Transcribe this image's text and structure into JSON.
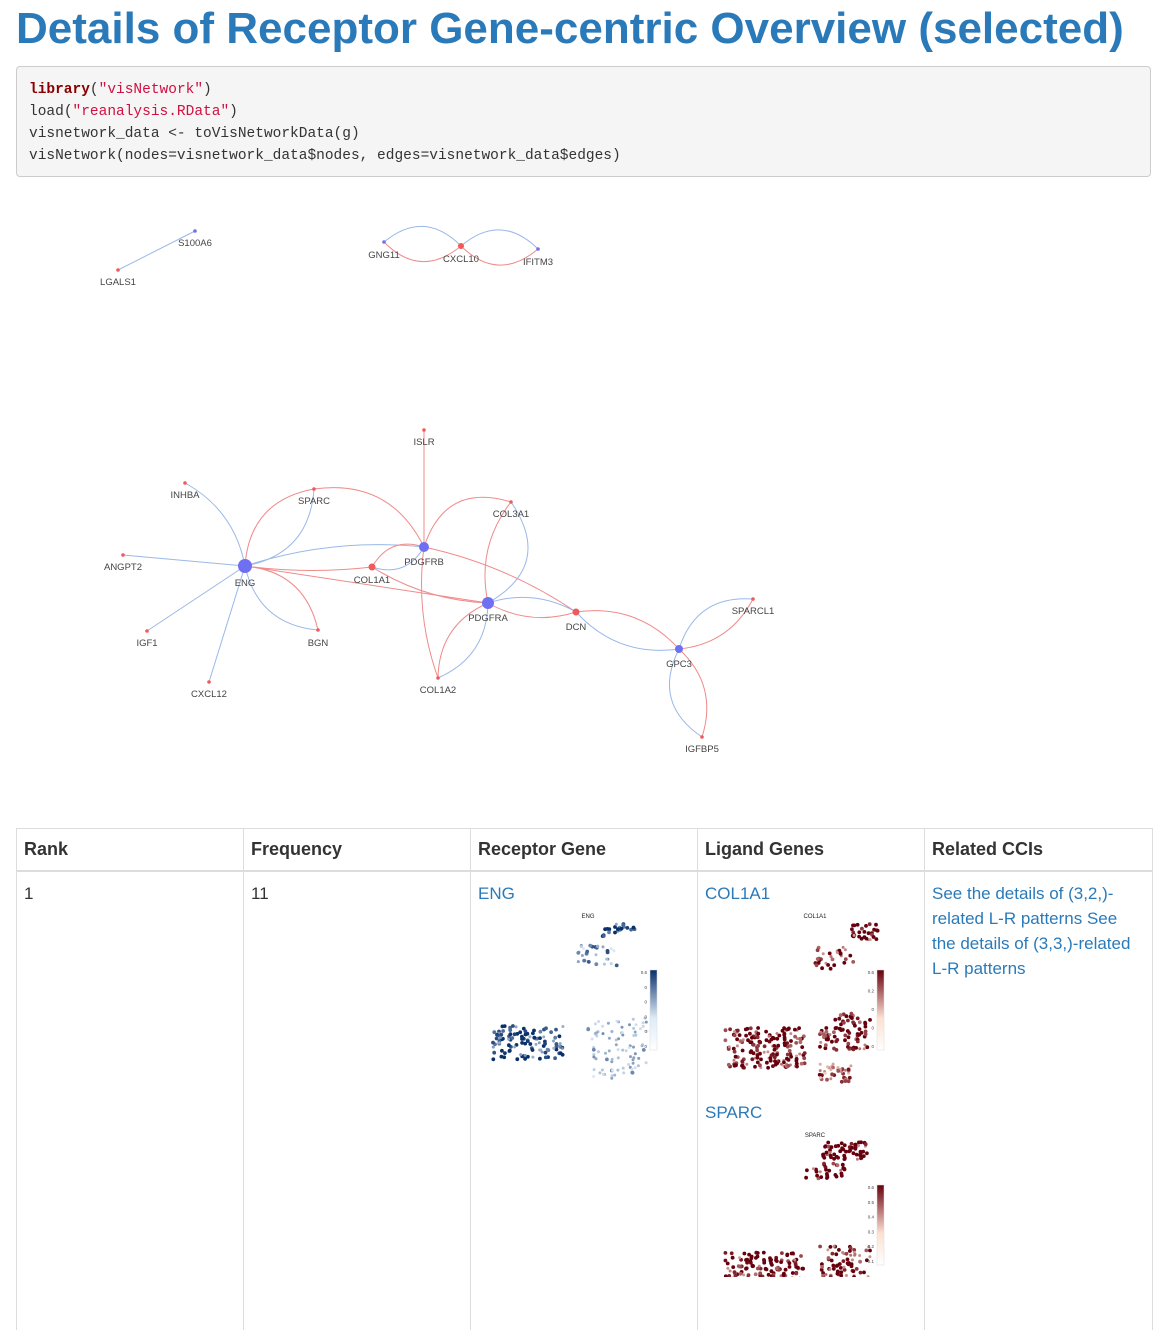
{
  "page_title": "Details of Receptor Gene-centric Overview (selected)",
  "code": {
    "line1_fn": "library",
    "line1_arg": "\"visNetwork\"",
    "line2_fn": "load",
    "line2_arg": "\"reanalysis.RData\"",
    "line3": "visnetwork_data <- toVisNetworkData(g)",
    "line4": "visNetwork(nodes=visnetwork_data$nodes, edges=visnetwork_data$edges)"
  },
  "network": {
    "colors": {
      "receptor_node": "#6f6ff2",
      "ligand_node": "#f05a5a",
      "ligand_edge": "#f08a8a",
      "receptor_edge": "#9ab8e8"
    },
    "nodes": [
      {
        "id": "S100A6",
        "label": "S100A6",
        "kind": "receptor"
      },
      {
        "id": "LGALS1",
        "label": "LGALS1",
        "kind": "ligand"
      },
      {
        "id": "GNG11",
        "label": "GNG11",
        "kind": "receptor"
      },
      {
        "id": "CXCL10",
        "label": "CXCL10",
        "kind": "ligand"
      },
      {
        "id": "IFITM3",
        "label": "IFITM3",
        "kind": "receptor"
      },
      {
        "id": "ISLR",
        "label": "ISLR",
        "kind": "ligand"
      },
      {
        "id": "INHBA",
        "label": "INHBA",
        "kind": "ligand"
      },
      {
        "id": "SPARC",
        "label": "SPARC",
        "kind": "ligand"
      },
      {
        "id": "COL3A1",
        "label": "COL3A1",
        "kind": "ligand"
      },
      {
        "id": "ANGPT2",
        "label": "ANGPT2",
        "kind": "ligand"
      },
      {
        "id": "ENG",
        "label": "ENG",
        "kind": "receptor"
      },
      {
        "id": "COL1A1",
        "label": "COL1A1",
        "kind": "ligand"
      },
      {
        "id": "PDGFRB",
        "label": "PDGFRB",
        "kind": "receptor"
      },
      {
        "id": "PDGFRA",
        "label": "PDGFRA",
        "kind": "receptor"
      },
      {
        "id": "DCN",
        "label": "DCN",
        "kind": "ligand"
      },
      {
        "id": "SPARCL1",
        "label": "SPARCL1",
        "kind": "ligand"
      },
      {
        "id": "IGF1",
        "label": "IGF1",
        "kind": "ligand"
      },
      {
        "id": "BGN",
        "label": "BGN",
        "kind": "ligand"
      },
      {
        "id": "GPC3",
        "label": "GPC3",
        "kind": "receptor"
      },
      {
        "id": "CXCL12",
        "label": "CXCL12",
        "kind": "ligand"
      },
      {
        "id": "COL1A2",
        "label": "COL1A2",
        "kind": "ligand"
      },
      {
        "id": "IGFBP5",
        "label": "IGFBP5",
        "kind": "ligand"
      }
    ]
  },
  "table": {
    "headers": [
      "Rank",
      "Frequency",
      "Receptor Gene",
      "Ligand Genes",
      "Related CCIs"
    ],
    "row": {
      "rank": "1",
      "frequency": "11",
      "receptor": "ENG",
      "receptor_plot_title": "ENG",
      "ligands": [
        {
          "name": "COL1A1",
          "plot_title": "COL1A1"
        },
        {
          "name": "SPARC",
          "plot_title": "SPARC"
        }
      ],
      "related_ccis": "See the details of (3,2,)-related L-R patterns See the details of (3,3,)-related L-R patterns"
    },
    "legend_ticks": {
      "eng": [
        "0.6",
        "0",
        "0",
        "0",
        "0",
        "0"
      ],
      "col1a1": [
        "0.6",
        "0.2",
        "0",
        "0",
        "0"
      ],
      "sparc": [
        "0.6",
        "0.5",
        "0.4",
        "0.3",
        "0.2",
        "0.1"
      ]
    },
    "colors": {
      "blue_dark": "#08306b",
      "blue_light": "#deebf7",
      "red_dark": "#67000d",
      "red_light": "#fee0d2"
    }
  }
}
